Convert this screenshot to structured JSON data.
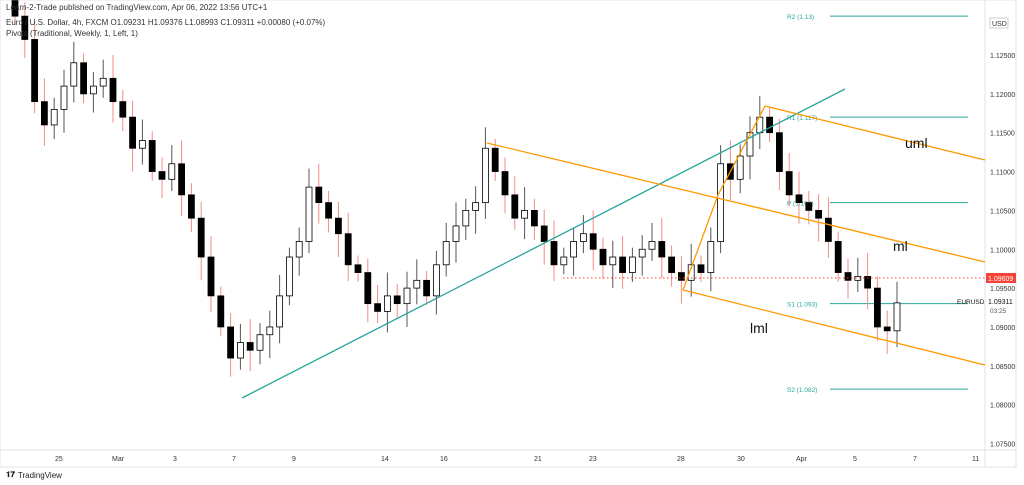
{
  "published": "Learn-2-Trade published on TradingView.com, Apr 06, 2022 13:56 UTC+1",
  "legend": {
    "symbol_line": "Euro / U.S. Dollar, 4h, FXCM  O1.09231  H1.09376  L1.08993  C1.09311  +0.00080 (+0.07%)",
    "indicator_line": "Pivots (Traditional, Weekly, 1, Left, 1)"
  },
  "logo": "TradingView",
  "colors": {
    "up": "#ffffff",
    "down": "#000000",
    "wick": "#f28b82",
    "trend": "#26a69a",
    "pitchfork": "#ff9800",
    "pivot": "#26a69a",
    "last_price": "#f44336"
  },
  "chart_data": {
    "type": "candlestick",
    "symbol": "EURUSD",
    "timeframe": "4h",
    "currency": "USD",
    "ylim": [
      1.073,
      1.131
    ],
    "y_ticks": [
      "1.12500",
      "1.12000",
      "1.11500",
      "1.11000",
      "1.10500",
      "1.10000",
      "1.09500",
      "1.09000",
      "1.08500",
      "1.08000",
      "1.07500"
    ],
    "y_tick_values": [
      1.125,
      1.12,
      1.115,
      1.11,
      1.105,
      1.1,
      1.095,
      1.09,
      1.085,
      1.08,
      1.075
    ],
    "x_ticks": [
      "25",
      "Mar",
      "3",
      "7",
      "9",
      "14",
      "16",
      "21",
      "23",
      "28",
      "30",
      "Apr",
      "5",
      "7",
      "11"
    ],
    "closes": [
      1.13,
      1.127,
      1.119,
      1.116,
      1.118,
      1.121,
      1.124,
      1.12,
      1.121,
      1.122,
      1.119,
      1.117,
      1.113,
      1.114,
      1.11,
      1.109,
      1.111,
      1.107,
      1.104,
      1.099,
      1.094,
      1.09,
      1.086,
      1.088,
      1.087,
      1.089,
      1.09,
      1.094,
      1.099,
      1.101,
      1.108,
      1.106,
      1.104,
      1.102,
      1.098,
      1.097,
      1.093,
      1.092,
      1.094,
      1.093,
      1.095,
      1.096,
      1.094,
      1.098,
      1.101,
      1.103,
      1.105,
      1.106,
      1.113,
      1.11,
      1.107,
      1.104,
      1.105,
      1.103,
      1.101,
      1.098,
      1.099,
      1.101,
      1.102,
      1.1,
      1.098,
      1.099,
      1.097,
      1.099,
      1.1,
      1.101,
      1.099,
      1.097,
      1.096,
      1.098,
      1.097,
      1.101,
      1.111,
      1.109,
      1.112,
      1.115,
      1.117,
      1.115,
      1.11,
      1.107,
      1.106,
      1.105,
      1.104,
      1.101,
      1.097,
      1.096,
      1.0965,
      1.095,
      1.09,
      1.0895,
      1.0931
    ],
    "last_price": {
      "label": "1.09311",
      "countdown": "03:25",
      "name": "EURUSD"
    },
    "marked_level": {
      "label": "1.09609",
      "value": 1.09609
    },
    "pivots": [
      {
        "label": "R2 (1.13)",
        "value": 1.13
      },
      {
        "label": "R1 (1.117)",
        "value": 1.117
      },
      {
        "label": "P (1.106)",
        "value": 1.106
      },
      {
        "label": "S1 (1.093)",
        "value": 1.093
      },
      {
        "label": "S2 (1.082)",
        "value": 1.082
      }
    ],
    "annotations": [
      "uml",
      "ml",
      "lml"
    ]
  }
}
